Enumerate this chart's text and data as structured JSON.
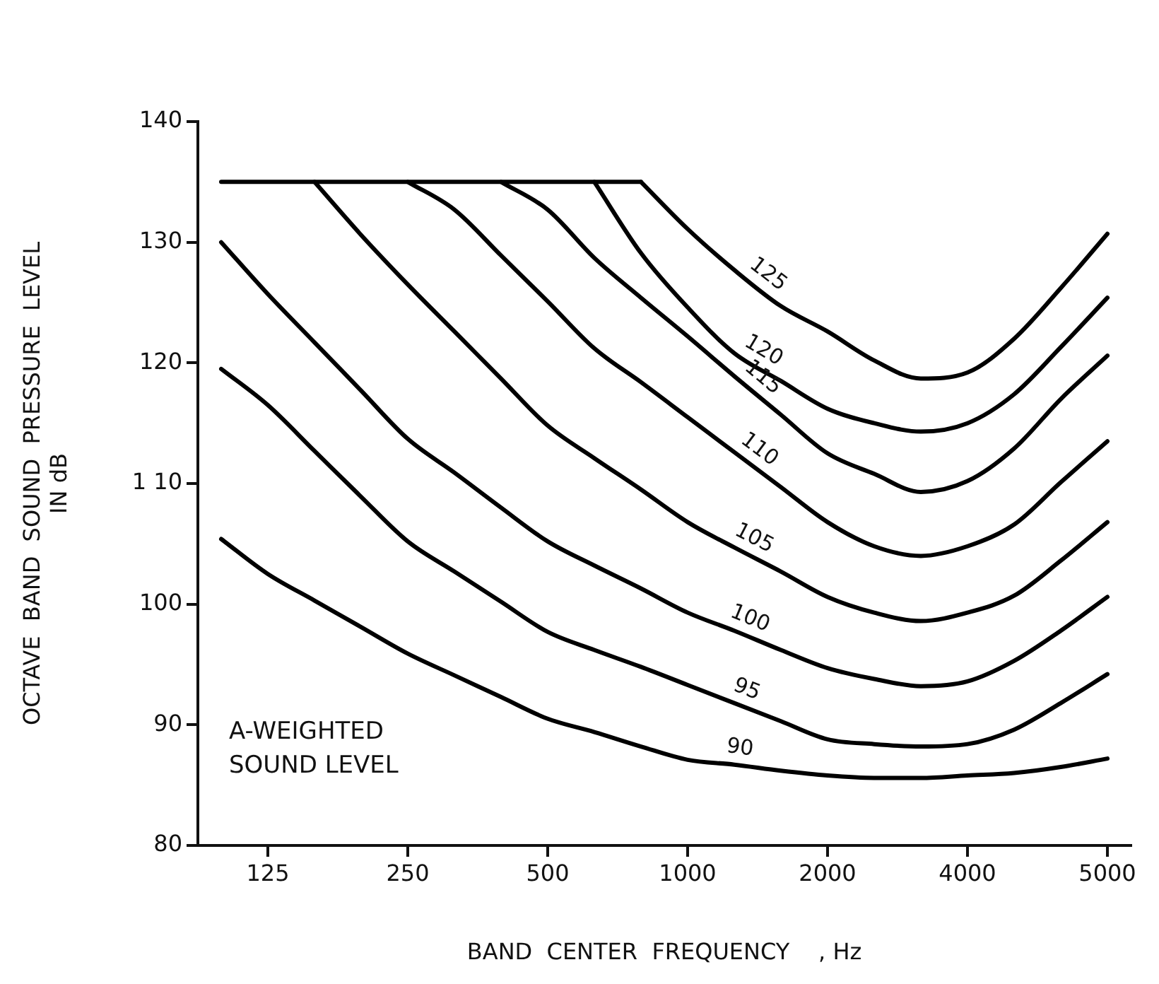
{
  "chart_data": {
    "type": "line",
    "xlabel": "BAND  CENTER  FREQUENCY    , Hz",
    "ylabel": "OCTAVE  BAND  SOUND  PRESSURE  LEVEL\nIN dB",
    "categories": [
      null,
      "125",
      null,
      null,
      "250",
      null,
      null,
      "500",
      null,
      null,
      "1000",
      null,
      null,
      "2000",
      null,
      null,
      "4000",
      null,
      null,
      "5000"
    ],
    "ylim": [
      80,
      140
    ],
    "yticks": [
      80,
      90,
      100,
      {
        "value": 110,
        "label": "1 10"
      },
      120,
      130,
      140
    ],
    "grid": false,
    "legend": false,
    "marker": "none",
    "line_style": "solid",
    "annotations": [
      "A-WEIGHTED\nSOUND LEVEL"
    ],
    "series": [
      {
        "color": "#000000",
        "values": [
          135,
          135,
          135,
          135,
          135,
          135,
          135,
          135,
          135,
          135,
          null,
          null,
          null,
          null,
          null,
          null,
          null,
          null,
          null,
          null
        ]
      },
      {
        "name": "125",
        "color": "#000000",
        "values": [
          null,
          null,
          null,
          null,
          null,
          null,
          null,
          null,
          null,
          135,
          131.1,
          127.7,
          124.7,
          122.6,
          120.2,
          118.7,
          119.2,
          122.0,
          126.2,
          130.7
        ]
      },
      {
        "name": "120",
        "color": "#000000",
        "values": [
          null,
          null,
          null,
          null,
          null,
          null,
          null,
          null,
          135,
          129.1,
          124.6,
          120.8,
          118.5,
          116.2,
          115.0,
          114.3,
          115.0,
          117.4,
          121.3,
          125.4
        ]
      },
      {
        "name": "115",
        "color": "#000000",
        "values": [
          null,
          null,
          null,
          null,
          null,
          null,
          135,
          132.7,
          128.7,
          125.4,
          122.2,
          118.9,
          115.7,
          112.5,
          110.8,
          109.3,
          110.2,
          112.9,
          117.0,
          120.6
        ]
      },
      {
        "name": "110",
        "color": "#000000",
        "values": [
          null,
          null,
          null,
          null,
          135,
          132.7,
          128.9,
          125.1,
          121.2,
          118.4,
          115.5,
          112.6,
          109.7,
          106.8,
          104.8,
          104.0,
          104.8,
          106.6,
          110.1,
          113.5
        ]
      },
      {
        "name": "105",
        "color": "#000000",
        "values": [
          null,
          null,
          135,
          130.6,
          126.5,
          122.6,
          118.7,
          114.8,
          112.1,
          109.5,
          106.8,
          104.7,
          102.7,
          100.6,
          99.3,
          98.6,
          99.3,
          100.7,
          103.6,
          106.8
        ]
      },
      {
        "name": "100",
        "color": "#000000",
        "values": [
          130,
          125.7,
          121.7,
          117.7,
          113.7,
          110.9,
          108.0,
          105.2,
          103.2,
          101.3,
          99.3,
          97.8,
          96.2,
          94.7,
          93.8,
          93.2,
          93.6,
          95.3,
          97.8,
          100.6
        ]
      },
      {
        "name": "95",
        "color": "#000000",
        "values": [
          119.5,
          116.5,
          112.7,
          108.9,
          105.2,
          102.7,
          100.2,
          97.7,
          96.2,
          94.8,
          93.3,
          91.8,
          90.3,
          88.8,
          88.4,
          88.2,
          88.4,
          89.6,
          91.8,
          94.2
        ]
      },
      {
        "name": "90",
        "color": "#000000",
        "values": [
          105.4,
          102.5,
          100.3,
          98.1,
          95.9,
          94.1,
          92.3,
          90.5,
          89.4,
          88.2,
          87.1,
          86.7,
          86.2,
          85.8,
          85.6,
          85.6,
          85.8,
          86.0,
          86.5,
          87.2
        ]
      }
    ]
  }
}
